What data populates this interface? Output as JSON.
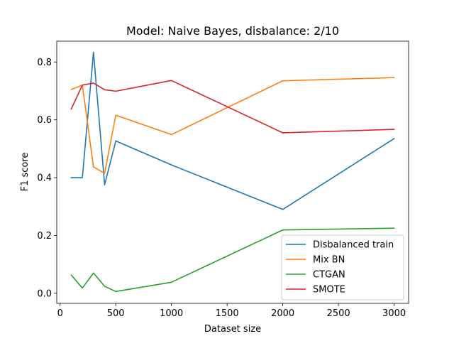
{
  "chart_data": {
    "type": "line",
    "title": "Model: Naive Bayes, disbalance: 2/10",
    "xlabel": "Dataset size",
    "ylabel": "F1 score",
    "xlim": [
      -30,
      3130
    ],
    "ylim": [
      -0.035,
      0.872
    ],
    "xticks": [
      0,
      500,
      1000,
      1500,
      2000,
      2500,
      3000
    ],
    "yticks": [
      0.0,
      0.2,
      0.4,
      0.6,
      0.8
    ],
    "ytick_labels": [
      "0.0",
      "0.2",
      "0.4",
      "0.6",
      "0.8"
    ],
    "grid": false,
    "legend_position": "lower-right",
    "x": [
      100,
      200,
      300,
      400,
      500,
      1000,
      2000,
      3000
    ],
    "series": [
      {
        "name": "Disbalanced train",
        "color": "#1f77b4",
        "values": [
          0.4,
          0.4,
          0.834,
          0.375,
          0.527,
          0.444,
          0.29,
          0.535
        ]
      },
      {
        "name": "Mix BN",
        "color": "#ff7f0e",
        "values": [
          0.705,
          0.72,
          0.437,
          0.415,
          0.616,
          0.549,
          0.735,
          0.746
        ]
      },
      {
        "name": "CTGAN",
        "color": "#2ca02c",
        "values": [
          0.063,
          0.018,
          0.07,
          0.024,
          0.006,
          0.038,
          0.219,
          0.225
        ]
      },
      {
        "name": "SMOTE",
        "color": "#d62728",
        "values": [
          0.637,
          0.72,
          0.727,
          0.704,
          0.699,
          0.736,
          0.555,
          0.567
        ]
      }
    ]
  }
}
